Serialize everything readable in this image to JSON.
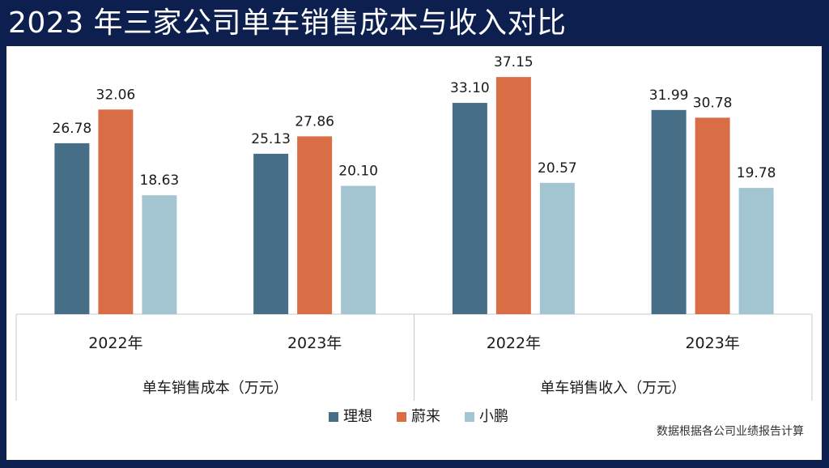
{
  "title": "2023 年三家公司单车销售成本与收入对比",
  "note": "数据根据各公司业绩报告计算",
  "colors": {
    "li": "#466f87",
    "nio": "#d96d45",
    "xpeng": "#a3c5d2",
    "background": "#0c1f4f"
  },
  "chart_data": {
    "type": "bar",
    "groups": [
      "单车销售成本（万元）",
      "单车销售收入（万元）"
    ],
    "categories": [
      "2022年",
      "2023年"
    ],
    "series": [
      {
        "name": "理想",
        "values": [
          [
            26.78,
            25.13
          ],
          [
            33.1,
            31.99
          ]
        ]
      },
      {
        "name": "蔚来",
        "values": [
          [
            32.06,
            27.86
          ],
          [
            37.15,
            30.78
          ]
        ]
      },
      {
        "name": "小鹏",
        "values": [
          [
            18.63,
            20.1
          ],
          [
            20.57,
            19.78
          ]
        ]
      }
    ],
    "ylim": [
      0,
      40
    ],
    "grid": false,
    "legend_position": "bottom-center"
  }
}
